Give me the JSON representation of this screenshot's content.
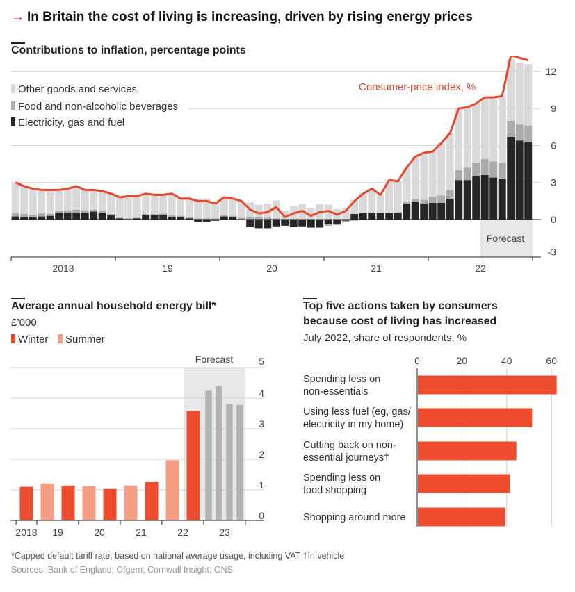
{
  "title": "In Britain the cost of living is increasing, driven by rising energy prices",
  "colors": {
    "accent": "#e3120b",
    "other": "#d9d9d9",
    "food": "#ababab",
    "energy": "#262626",
    "cpi": "#e8472f",
    "winter": "#ee4c2f",
    "summer": "#f59e84",
    "forecast_bar": "#b3b3b3",
    "forecast_shade": "#e8e8ea"
  },
  "chart_data": [
    {
      "type": "bar",
      "stacked": true,
      "title": "Contributions to inflation, percentage points",
      "legend": [
        "Other goods and services",
        "Food and non-alcoholic beverages",
        "Electricity, gas and fuel"
      ],
      "legend_placement": "top-left",
      "line_label": "Consumer-price index, %",
      "forecast_label": "Forecast",
      "forecast_start": "2022-07",
      "x_tick_labels": [
        "2018",
        "19",
        "20",
        "21",
        "22"
      ],
      "y_ticks": [
        "12",
        "9",
        "6",
        "3",
        "0",
        "-3"
      ],
      "ylim": [
        -3,
        13
      ],
      "grid": true,
      "x_start": "2018-01",
      "frequency": "monthly",
      "series": [
        {
          "name": "Electricity, gas and fuel",
          "values": [
            0.25,
            0.2,
            0.2,
            0.25,
            0.3,
            0.55,
            0.55,
            0.55,
            0.55,
            0.65,
            0.55,
            0.35,
            0.1,
            0.05,
            0.1,
            0.35,
            0.35,
            0.35,
            0.2,
            0.2,
            0.1,
            -0.2,
            -0.2,
            -0.1,
            0.25,
            0.2,
            0.0,
            -0.6,
            -0.7,
            -0.7,
            -0.55,
            -0.5,
            -0.6,
            -0.55,
            -0.65,
            -0.65,
            -0.4,
            -0.35,
            -0.1,
            0.45,
            0.55,
            0.55,
            0.55,
            0.55,
            0.55,
            1.3,
            1.45,
            1.3,
            1.35,
            1.35,
            1.7,
            3.2,
            3.2,
            3.5,
            3.6,
            3.4,
            3.3,
            6.7,
            6.4,
            6.3
          ]
        },
        {
          "name": "Food and non-alcoholic beverages",
          "values": [
            0.3,
            0.25,
            0.2,
            0.25,
            0.15,
            0.15,
            0.2,
            0.25,
            0.2,
            0.15,
            0.2,
            0.1,
            0.05,
            0.05,
            0.05,
            0.1,
            0.1,
            0.15,
            0.15,
            0.1,
            0.1,
            0.1,
            0.1,
            0.1,
            0.1,
            0.1,
            0.15,
            0.2,
            0.2,
            0.15,
            0.1,
            0.05,
            0.05,
            0.0,
            0.0,
            0.0,
            -0.1,
            -0.1,
            -0.1,
            -0.1,
            -0.05,
            0.0,
            0.0,
            0.0,
            0.05,
            0.15,
            0.2,
            0.3,
            0.5,
            0.6,
            0.7,
            0.8,
            1.0,
            1.1,
            1.3,
            1.3,
            1.3,
            1.3,
            1.3,
            1.3
          ]
        },
        {
          "name": "Other goods and services",
          "values": [
            2.45,
            2.25,
            2.1,
            1.9,
            1.95,
            1.7,
            1.75,
            1.9,
            1.65,
            1.6,
            1.55,
            1.65,
            1.65,
            1.8,
            1.75,
            1.65,
            1.55,
            1.5,
            1.75,
            1.4,
            1.5,
            1.6,
            1.6,
            1.3,
            1.45,
            1.4,
            1.35,
            1.2,
            1.0,
            1.15,
            1.45,
            0.65,
            1.05,
            1.25,
            0.95,
            1.25,
            1.2,
            0.85,
            0.9,
            1.15,
            1.6,
            1.95,
            1.45,
            2.65,
            2.5,
            2.75,
            3.45,
            3.8,
            3.65,
            4.25,
            4.6,
            5.0,
            4.9,
            4.8,
            5.0,
            5.2,
            5.4,
            5.0,
            5.0,
            5.0
          ]
        },
        {
          "name": "Consumer-price index, %",
          "type": "line",
          "values": [
            3.0,
            2.7,
            2.5,
            2.4,
            2.4,
            2.4,
            2.5,
            2.7,
            2.4,
            2.4,
            2.3,
            2.1,
            1.8,
            1.9,
            1.9,
            2.1,
            2.0,
            2.0,
            2.1,
            1.7,
            1.7,
            1.5,
            1.5,
            1.3,
            1.8,
            1.7,
            1.5,
            0.8,
            0.5,
            0.6,
            1.0,
            0.2,
            0.5,
            0.7,
            0.3,
            0.6,
            0.7,
            0.4,
            0.7,
            1.5,
            2.1,
            2.5,
            2.0,
            3.2,
            3.1,
            4.2,
            5.1,
            5.4,
            5.5,
            6.2,
            7.0,
            9.0,
            9.1,
            9.4,
            9.9,
            9.9,
            10.0,
            13.3,
            13.1,
            12.9
          ]
        }
      ]
    },
    {
      "type": "bar",
      "title": "Average annual household energy bill*",
      "subtitle": "£’000",
      "legend": [
        "Winter",
        "Summer"
      ],
      "forecast_label": "Forecast",
      "x_tick_labels": [
        "2018",
        "19",
        "20",
        "21",
        "22",
        "23"
      ],
      "y_ticks": [
        "5",
        "4",
        "3",
        "2",
        "1",
        "0"
      ],
      "ylim": [
        0,
        5
      ],
      "grid": true,
      "bars": [
        {
          "season": "Winter",
          "value": 1.1
        },
        {
          "season": "Summer",
          "value": 1.21
        },
        {
          "season": "Winter",
          "value": 1.14
        },
        {
          "season": "Summer",
          "value": 1.12
        },
        {
          "season": "Winter",
          "value": 1.03
        },
        {
          "season": "Summer",
          "value": 1.14
        },
        {
          "season": "Winter",
          "value": 1.27
        },
        {
          "season": "Summer",
          "value": 1.97
        },
        {
          "season": "Winter",
          "value": 3.58
        },
        {
          "season": "Forecast",
          "value": 4.24
        },
        {
          "season": "Forecast",
          "value": 4.4
        },
        {
          "season": "Forecast",
          "value": 3.81
        },
        {
          "season": "Forecast",
          "value": 3.78
        }
      ]
    },
    {
      "type": "bar",
      "orientation": "horizontal",
      "title": "Top five actions taken by consumers because cost of living has increased",
      "title_lines": [
        "Top five actions taken by consumers",
        "because cost of living has increased"
      ],
      "subtitle": "July 2022, share of respondents, %",
      "x_ticks": [
        "0",
        "20",
        "40",
        "60"
      ],
      "xlim": [
        0,
        62
      ],
      "grid": true,
      "categories": [
        [
          "Spending less on",
          "non-essentials"
        ],
        [
          "Using less fuel (eg, gas/",
          "electricity in my home)"
        ],
        [
          "Cutting back on non-",
          "essential journeys†"
        ],
        [
          "Spending less on",
          "food shopping"
        ],
        [
          "Shopping around more"
        ]
      ],
      "values": [
        62,
        51,
        44,
        41,
        39
      ]
    }
  ],
  "footnote": "*Capped default tariff rate, based on national average usage, including VAT †In vehicle",
  "sources": "Sources: Bank of England; Ofgem; Cornwall Insight; ONS"
}
